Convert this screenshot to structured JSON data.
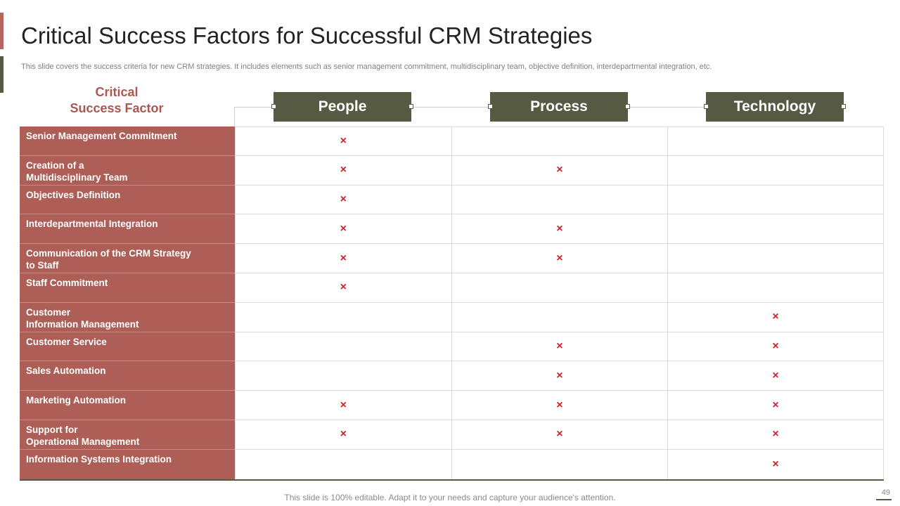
{
  "slide": {
    "title": "Critical Success Factors for Successful CRM Strategies",
    "subtitle": "This slide covers the success criteria for new CRM strategies. It includes elements such as senior management commitment, multidisciplinary team, objective definition, interdepartmental integration, etc.",
    "footer": "This slide is 100% editable. Adapt it to your needs and capture your audience's attention.",
    "page_number": "49"
  },
  "table": {
    "row_header_line1": "Critical",
    "row_header_line2": "Success Factor",
    "columns": [
      "People",
      "Process",
      "Technology"
    ],
    "mark_symbol": "×",
    "rows": [
      {
        "label": [
          "Senior Management Commitment"
        ],
        "marks": [
          true,
          false,
          false
        ]
      },
      {
        "label": [
          "Creation of a",
          "Multidisciplinary Team"
        ],
        "marks": [
          true,
          true,
          false
        ]
      },
      {
        "label": [
          "Objectives Definition"
        ],
        "marks": [
          true,
          false,
          false
        ]
      },
      {
        "label": [
          "Interdepartmental Integration"
        ],
        "marks": [
          true,
          true,
          false
        ]
      },
      {
        "label": [
          "Communication of the CRM Strategy",
          "to Staff"
        ],
        "marks": [
          true,
          true,
          false
        ]
      },
      {
        "label": [
          "Staff Commitment"
        ],
        "marks": [
          true,
          false,
          false
        ]
      },
      {
        "label": [
          "Customer",
          "Information Management"
        ],
        "marks": [
          false,
          false,
          true
        ]
      },
      {
        "label": [
          "Customer Service"
        ],
        "marks": [
          false,
          true,
          true
        ]
      },
      {
        "label": [
          "Sales Automation"
        ],
        "marks": [
          false,
          true,
          true
        ]
      },
      {
        "label": [
          "Marketing Automation"
        ],
        "marks": [
          true,
          true,
          true
        ]
      },
      {
        "label": [
          "Support for",
          "Operational Management"
        ],
        "marks": [
          true,
          true,
          true
        ]
      },
      {
        "label": [
          "Information Systems Integration"
        ],
        "marks": [
          false,
          false,
          true
        ]
      }
    ]
  },
  "colors": {
    "accent_red": "#ad5f57",
    "accent_olive": "#565a42",
    "mark_red": "#d0202a"
  }
}
